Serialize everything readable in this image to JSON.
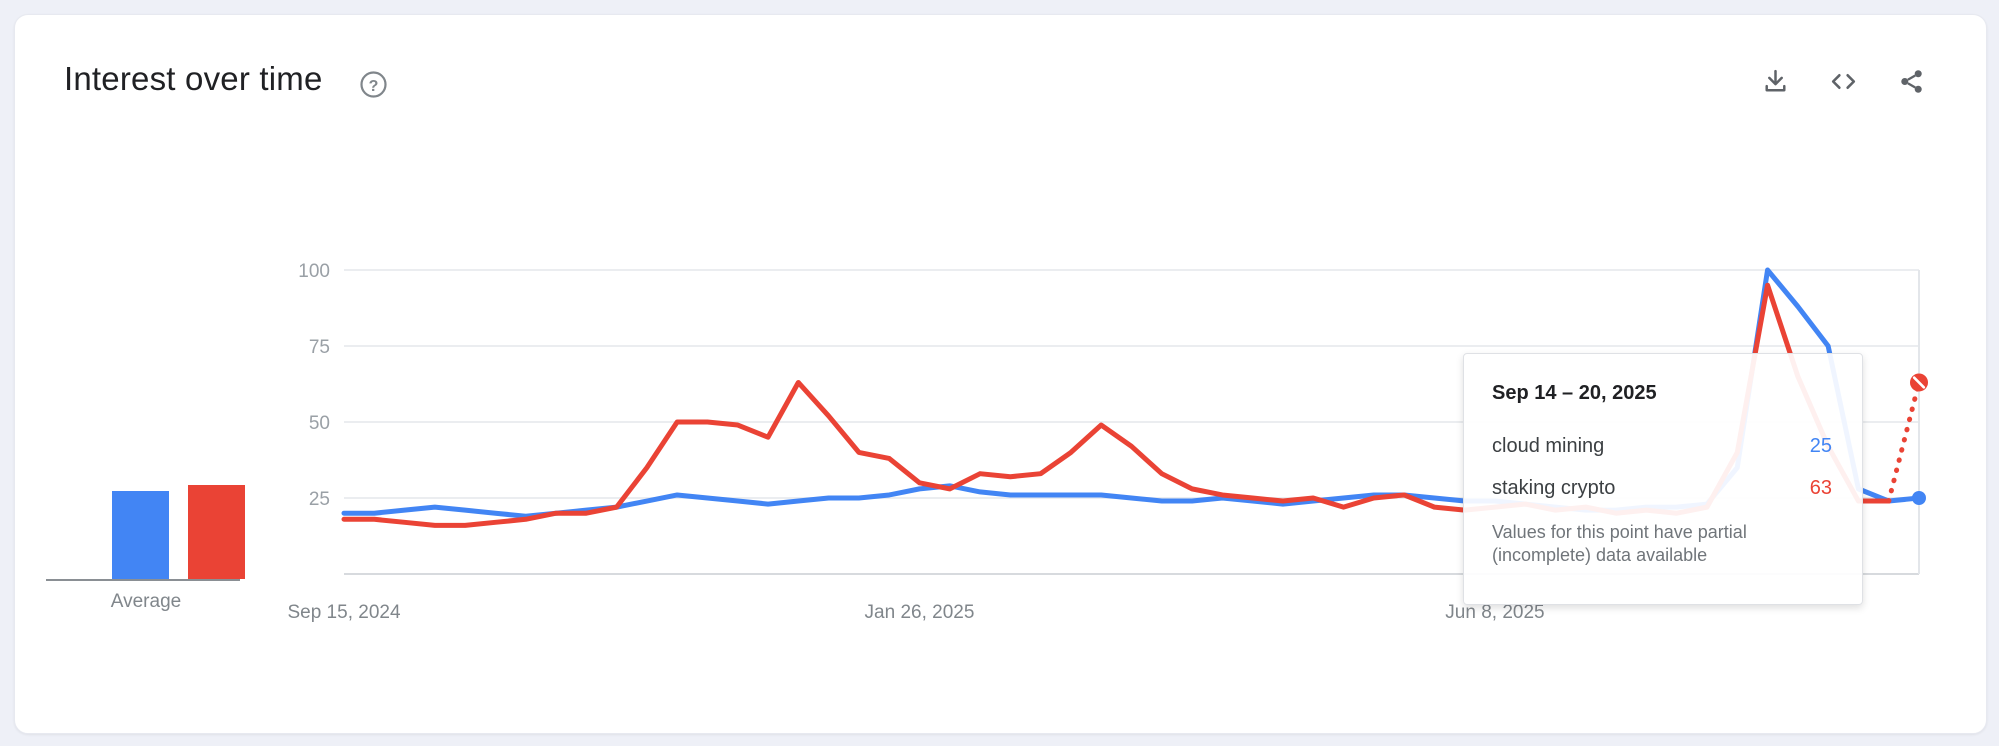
{
  "page": {
    "background": "#eef0f7",
    "card_background": "#ffffff"
  },
  "header": {
    "title": "Interest over time",
    "help_glyph": "?",
    "actions": [
      {
        "name": "download",
        "icon": "download-icon"
      },
      {
        "name": "embed",
        "icon": "code-icon"
      },
      {
        "name": "share",
        "icon": "share-icon"
      }
    ]
  },
  "average": {
    "label": "Average",
    "values": [
      {
        "series": "cloud mining",
        "value": 29,
        "color": "#4285f4"
      },
      {
        "series": "staking crypto",
        "value": 31,
        "color": "#ea4335"
      }
    ]
  },
  "chart_data": {
    "type": "line",
    "title": "Interest over time",
    "ylim": [
      0,
      100
    ],
    "y_ticks": [
      25,
      50,
      75,
      100
    ],
    "grid": true,
    "legend_position": "none",
    "n_points": 53,
    "partial_from_index": 51,
    "x_tick_labels": [
      "Sep 15, 2024",
      "Jan 26, 2025",
      "Jun 8, 2025"
    ],
    "x_tick_positions": [
      0,
      19,
      38
    ],
    "series": [
      {
        "name": "cloud mining",
        "color": "#4285f4",
        "tail_style": "solid",
        "end_marker": "dot",
        "values": [
          20,
          20,
          21,
          22,
          21,
          20,
          19,
          20,
          21,
          22,
          24,
          26,
          25,
          24,
          23,
          24,
          25,
          25,
          26,
          28,
          29,
          27,
          26,
          26,
          26,
          26,
          25,
          24,
          24,
          25,
          24,
          23,
          24,
          25,
          26,
          26,
          25,
          24,
          24,
          23,
          22,
          21,
          21,
          22,
          22,
          23,
          35,
          100,
          88,
          75,
          28,
          24,
          25
        ]
      },
      {
        "name": "staking crypto",
        "color": "#ea4335",
        "tail_style": "dotted",
        "end_marker": "slashed-circle",
        "values": [
          18,
          18,
          17,
          16,
          16,
          17,
          18,
          20,
          20,
          22,
          35,
          50,
          50,
          49,
          45,
          63,
          52,
          40,
          38,
          30,
          28,
          33,
          32,
          33,
          40,
          49,
          42,
          33,
          28,
          26,
          25,
          24,
          25,
          22,
          25,
          26,
          22,
          21,
          22,
          23,
          21,
          22,
          20,
          21,
          20,
          22,
          40,
          95,
          65,
          42,
          24,
          24,
          63
        ]
      }
    ]
  },
  "tooltip": {
    "date_range": "Sep 14 – 20, 2025",
    "rows": [
      {
        "label": "cloud mining",
        "value": "25",
        "color": "#4285f4"
      },
      {
        "label": "staking crypto",
        "value": "63",
        "color": "#ea4335"
      }
    ],
    "note": "Values for this point have partial (incomplete) data available"
  }
}
